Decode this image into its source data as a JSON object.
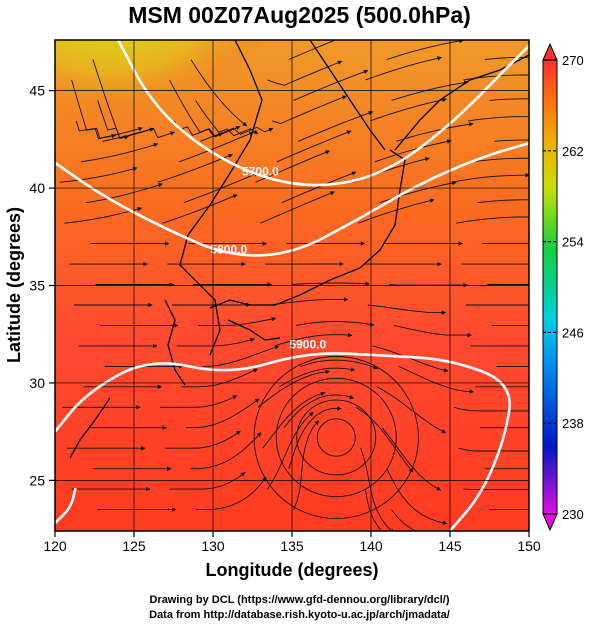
{
  "title": "MSM 00Z07Aug2025 (500.0hPa)",
  "credits": [
    "Drawing by DCL (https://www.gfd-dennou.org/library/dcl/)",
    "Data from http://database.rish.kyoto-u.ac.jp/arch/jmadata/"
  ],
  "chart_data": {
    "type": "heatmap",
    "title": "MSM 00Z07Aug2025 (500.0hPa)",
    "xlabel": "Longitude (degrees)",
    "ylabel": "Latitude  (degrees)",
    "xlim": [
      120,
      150
    ],
    "ylim": [
      22.4,
      47.6
    ],
    "xticks": [
      120,
      125,
      130,
      135,
      140,
      145,
      150
    ],
    "yticks": [
      25,
      30,
      35,
      40,
      45
    ],
    "grid": true,
    "colorbar": {
      "min": 230,
      "max": 270,
      "ticks": [
        230,
        238,
        246,
        254,
        262,
        270
      ],
      "colors": [
        "#e010e0",
        "#0018c8",
        "#00c8f0",
        "#10d040",
        "#c8e000",
        "#f0a000",
        "#ff5a10",
        "#ff3030"
      ],
      "extend": "both"
    },
    "contours": [
      {
        "label": "5700.0",
        "points": [
          [
            124,
            47.6
          ],
          [
            126,
            44.5
          ],
          [
            129,
            42.2
          ],
          [
            133,
            40.5
          ],
          [
            137,
            40.0
          ],
          [
            141,
            40.8
          ],
          [
            145,
            43.2
          ],
          [
            149,
            46.5
          ],
          [
            150,
            47.3
          ]
        ]
      },
      {
        "label": "5800.0",
        "points": [
          [
            120,
            41.3
          ],
          [
            123,
            39.6
          ],
          [
            127,
            37.9
          ],
          [
            131,
            36.5
          ],
          [
            135,
            36.6
          ],
          [
            139,
            38.3
          ],
          [
            143,
            40.2
          ],
          [
            147,
            41.6
          ],
          [
            150,
            42.3
          ]
        ]
      },
      {
        "label": "5900.0",
        "points": [
          [
            120,
            27.5
          ],
          [
            122,
            29.5
          ],
          [
            126,
            31.3
          ],
          [
            131,
            30.4
          ],
          [
            136,
            31.6
          ],
          [
            141,
            31.4
          ],
          [
            145,
            31.2
          ],
          [
            149,
            30.0
          ],
          [
            148.5,
            27.2
          ],
          [
            147,
            24.3
          ],
          [
            145,
            22.4
          ]
        ]
      },
      {
        "label": "",
        "points": [
          [
            120,
            22.8
          ],
          [
            121,
            23.6
          ],
          [
            121.3,
            24.6
          ]
        ]
      }
    ],
    "air_temperature_colors": [
      {
        "region": "north",
        "color": "#e9a020"
      },
      {
        "region": "cold core",
        "color": "#d8e010"
      },
      {
        "region": "south",
        "color": "#ff4a2a"
      }
    ]
  }
}
